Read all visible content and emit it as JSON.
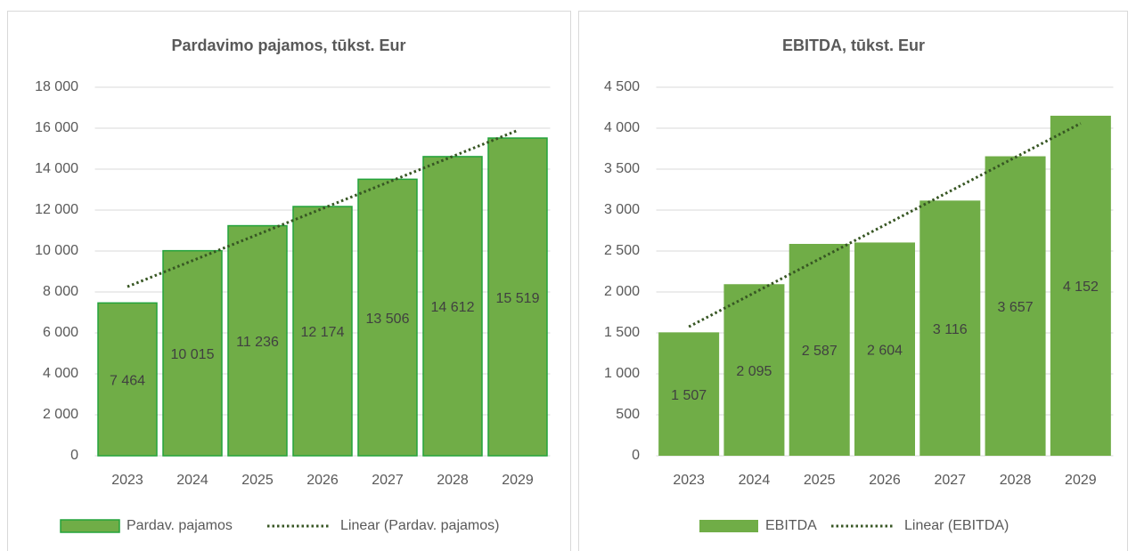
{
  "chart_data": [
    {
      "type": "bar",
      "title": "Pardavimo pajamos, tūkst. Eur",
      "categories": [
        "2023",
        "2024",
        "2025",
        "2026",
        "2027",
        "2028",
        "2029"
      ],
      "series": [
        {
          "name": "Pardav. pajamos",
          "color": "#70ad47",
          "edgecolor": "#23a33c",
          "values": [
            7464,
            10015,
            11236,
            12174,
            13506,
            14612,
            15519
          ],
          "value_labels": [
            "7 464",
            "10 015",
            "11 236",
            "12 174",
            "13 506",
            "14 612",
            "15 519"
          ]
        }
      ],
      "trendline": {
        "name": "Linear (Pardav. pajamos)",
        "color": "#375623"
      },
      "ylim": [
        0,
        18000
      ],
      "yticks": [
        {
          "value": 0,
          "label": "0"
        },
        {
          "value": 2000,
          "label": "2 000"
        },
        {
          "value": 4000,
          "label": "4 000"
        },
        {
          "value": 6000,
          "label": "6 000"
        },
        {
          "value": 8000,
          "label": "8 000"
        },
        {
          "value": 10000,
          "label": "10 000"
        },
        {
          "value": 12000,
          "label": "12 000"
        },
        {
          "value": 14000,
          "label": "14 000"
        },
        {
          "value": 16000,
          "label": "16 000"
        },
        {
          "value": 18000,
          "label": "18 000"
        }
      ],
      "grid": true,
      "legend": "bottom"
    },
    {
      "type": "bar",
      "title": "EBITDA, tūkst. Eur",
      "categories": [
        "2023",
        "2024",
        "2025",
        "2026",
        "2027",
        "2028",
        "2029"
      ],
      "series": [
        {
          "name": "EBITDA",
          "color": "#70ad47",
          "values": [
            1507,
            2095,
            2587,
            2604,
            3116,
            3657,
            4152
          ],
          "value_labels": [
            "1 507",
            "2 095",
            "2 587",
            "2 604",
            "3 116",
            "3 657",
            "4 152"
          ]
        }
      ],
      "trendline": {
        "name": "Linear (EBITDA)",
        "color": "#375623"
      },
      "ylim": [
        0,
        4500
      ],
      "yticks": [
        {
          "value": 0,
          "label": "0"
        },
        {
          "value": 500,
          "label": "500"
        },
        {
          "value": 1000,
          "label": "1 000"
        },
        {
          "value": 1500,
          "label": "1 500"
        },
        {
          "value": 2000,
          "label": "2 000"
        },
        {
          "value": 2500,
          "label": "2 500"
        },
        {
          "value": 3000,
          "label": "3 000"
        },
        {
          "value": 3500,
          "label": "3 500"
        },
        {
          "value": 4000,
          "label": "4 000"
        },
        {
          "value": 4500,
          "label": "4 500"
        }
      ],
      "grid": true,
      "legend": "bottom"
    }
  ]
}
